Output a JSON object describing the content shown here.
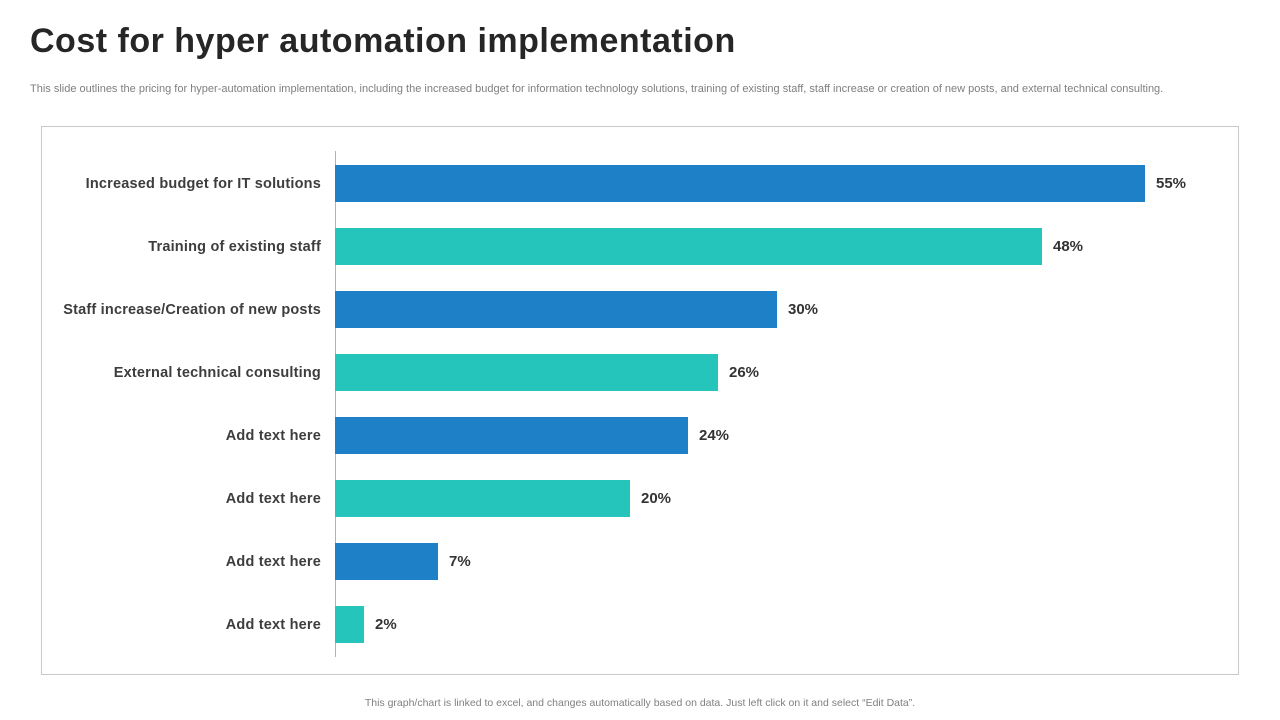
{
  "header": {
    "title": "Cost for hyper automation implementation",
    "subtitle": "This slide outlines the pricing for hyper-automation implementation, including the increased budget for information technology solutions, training of existing staff, staff increase or creation of new posts, and external technical consulting."
  },
  "chart_data": {
    "type": "bar",
    "orientation": "horizontal",
    "title": "",
    "xlabel": "",
    "ylabel": "",
    "xlim": [
      0,
      61
    ],
    "grid": false,
    "legend": false,
    "categories": [
      "Increased budget for IT solutions",
      "Training of existing staff",
      "Staff increase/Creation of new posts",
      "External technical consulting",
      "Add text here",
      "Add text here",
      "Add text here",
      "Add text here"
    ],
    "values": [
      55,
      48,
      30,
      26,
      24,
      20,
      7,
      2
    ],
    "value_labels": [
      "55%",
      "48%",
      "30%",
      "26%",
      "24%",
      "20%",
      "7%",
      "2%"
    ],
    "series_colors": [
      "#1e81c8",
      "#25c5bc"
    ]
  },
  "footer": {
    "note": "This graph/chart is linked to excel, and changes automatically based on data. Just left click on it and select “Edit Data”."
  }
}
